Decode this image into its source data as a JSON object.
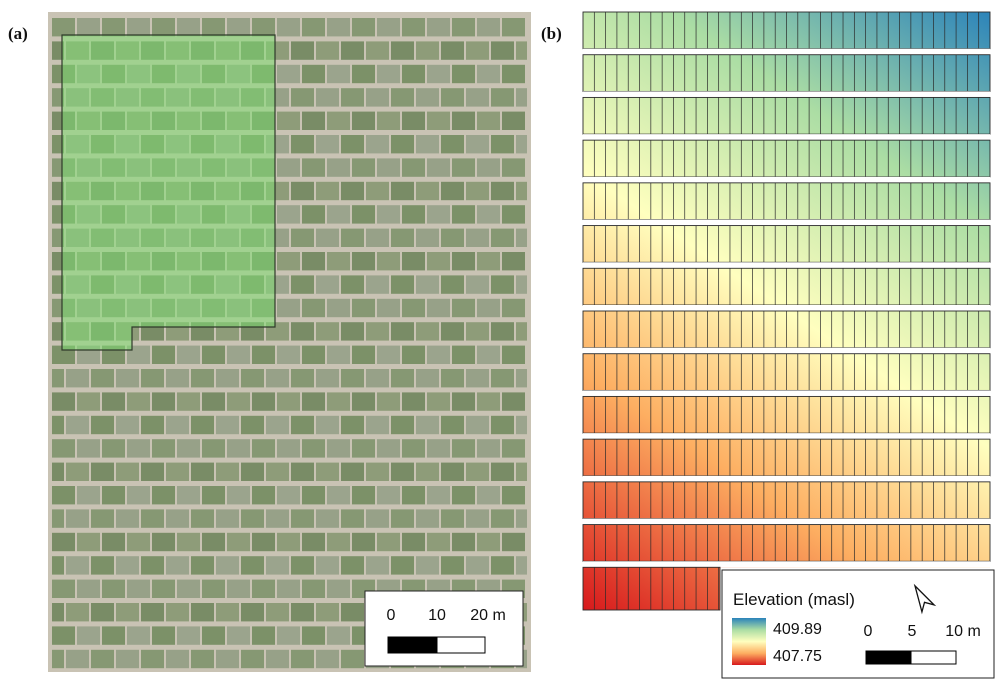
{
  "panel_a": {
    "label": "(a)",
    "scale_bar": {
      "ticks": [
        "0",
        "10",
        "20 m"
      ]
    }
  },
  "panel_b": {
    "label": "(b)",
    "legend": {
      "title": "Elevation (masl)",
      "max_value": "409.89",
      "min_value": "407.75",
      "north_arrow": "north-arrow-icon",
      "scale_bar": {
        "ticks": [
          "0",
          "5",
          "10 m"
        ]
      }
    },
    "colormap": [
      "#d7191c",
      "#fdae61",
      "#ffffbf",
      "#abdda4",
      "#2b83ba"
    ]
  }
}
